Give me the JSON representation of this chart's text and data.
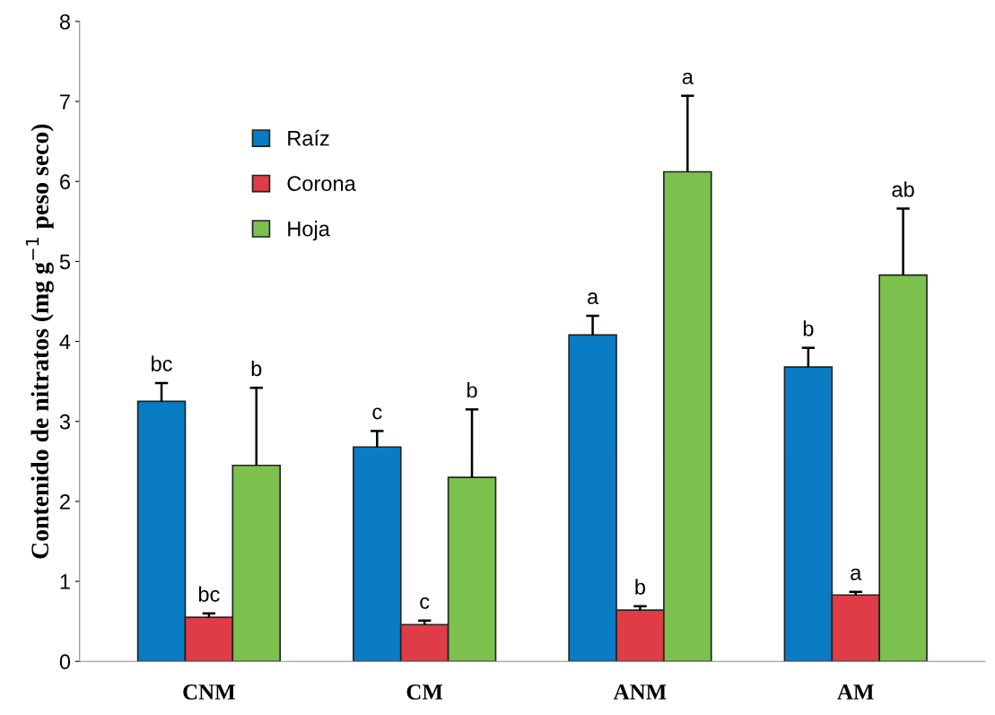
{
  "chart_data": {
    "type": "bar",
    "ylabel": "Contenido de nitratos (mg g$^{−1}$ peso seco)",
    "categories": [
      "CNM",
      "CM",
      "ANM",
      "AM"
    ],
    "series": [
      {
        "name": "Raíz",
        "color": "#0a7cc4",
        "values": [
          3.25,
          2.68,
          4.08,
          3.68
        ],
        "errors": [
          [
            3.25,
            3.48
          ],
          [
            2.68,
            2.88
          ],
          [
            4.08,
            4.32
          ],
          [
            3.68,
            3.92
          ]
        ]
      },
      {
        "name": "Corona",
        "color": "#e03c48",
        "values": [
          0.55,
          0.46,
          0.64,
          0.83
        ],
        "errors": [
          [
            0.55,
            0.6
          ],
          [
            0.46,
            0.51
          ],
          [
            0.64,
            0.69
          ],
          [
            0.83,
            0.87
          ]
        ]
      },
      {
        "name": "Hoja",
        "color": "#7cc04e",
        "values": [
          2.45,
          2.3,
          6.12,
          4.83
        ],
        "errors": [
          [
            2.45,
            3.42
          ],
          [
            2.3,
            3.15
          ],
          [
            6.12,
            7.07
          ],
          [
            4.83,
            5.66
          ]
        ]
      }
    ],
    "annotations": [
      "bc",
      "bc",
      "b",
      "c",
      "c",
      "b",
      "a",
      "b",
      "a",
      "b",
      "a",
      "ab"
    ],
    "ylim": [
      0,
      8
    ],
    "yticks": [
      0,
      1,
      2,
      3,
      4,
      5,
      6,
      7,
      8
    ],
    "grid": false,
    "legend": "top left"
  }
}
